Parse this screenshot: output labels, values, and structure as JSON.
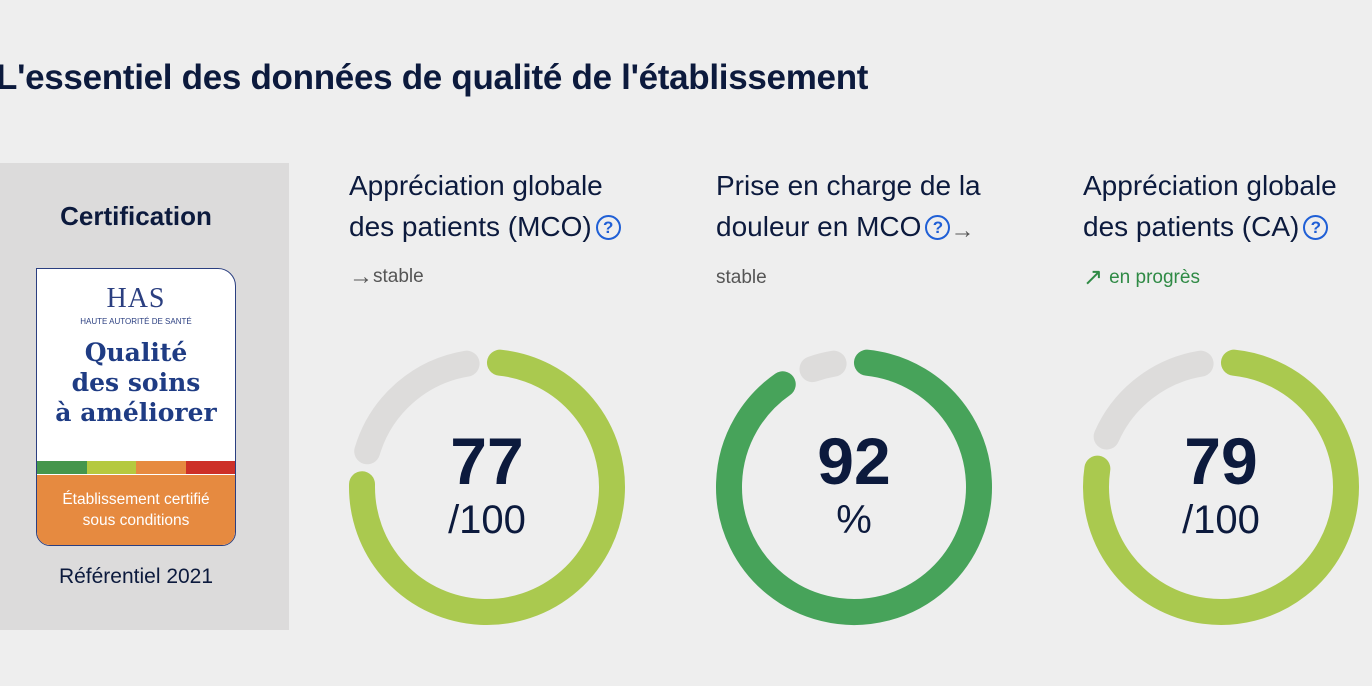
{
  "title": "L'essentiel des données de qualité de l'établissement",
  "certification": {
    "heading": "Certification",
    "logo_text": "HAS",
    "logo_subtitle": "HAUTE AUTORITÉ DE SANTÉ",
    "label_lines": [
      "Qualité",
      "des soins",
      "à améliorer"
    ],
    "status_lines": [
      "Établissement certifié",
      "sous conditions"
    ],
    "referential": "Référentiel 2021",
    "scale_colors": [
      "#45964c",
      "#b5c93f",
      "#e68a40",
      "#cd3028"
    ]
  },
  "indicators": [
    {
      "title_lines": [
        "Appréciation globale",
        "des patients (MCO)"
      ],
      "trend": "stable",
      "trend_dir": "flat",
      "value": "77",
      "unit": "/100",
      "score": 77,
      "max": 100,
      "color": "#aac94f"
    },
    {
      "title_lines": [
        "Prise en charge de la",
        "douleur en MCO"
      ],
      "trend": "stable",
      "trend_dir": "flat",
      "value": "92",
      "unit": "%",
      "score": 92,
      "max": 100,
      "color": "#47a35a"
    },
    {
      "title_lines": [
        "Appréciation globale",
        "des patients (CA)"
      ],
      "trend": "en progrès",
      "trend_dir": "up",
      "value": "79",
      "unit": "/100",
      "score": 79,
      "max": 100,
      "color": "#aac94f"
    }
  ],
  "icons": {
    "help": "?",
    "arrow_right": "→",
    "arrow_up_right": "↗"
  },
  "track_color": "#dddcdb"
}
